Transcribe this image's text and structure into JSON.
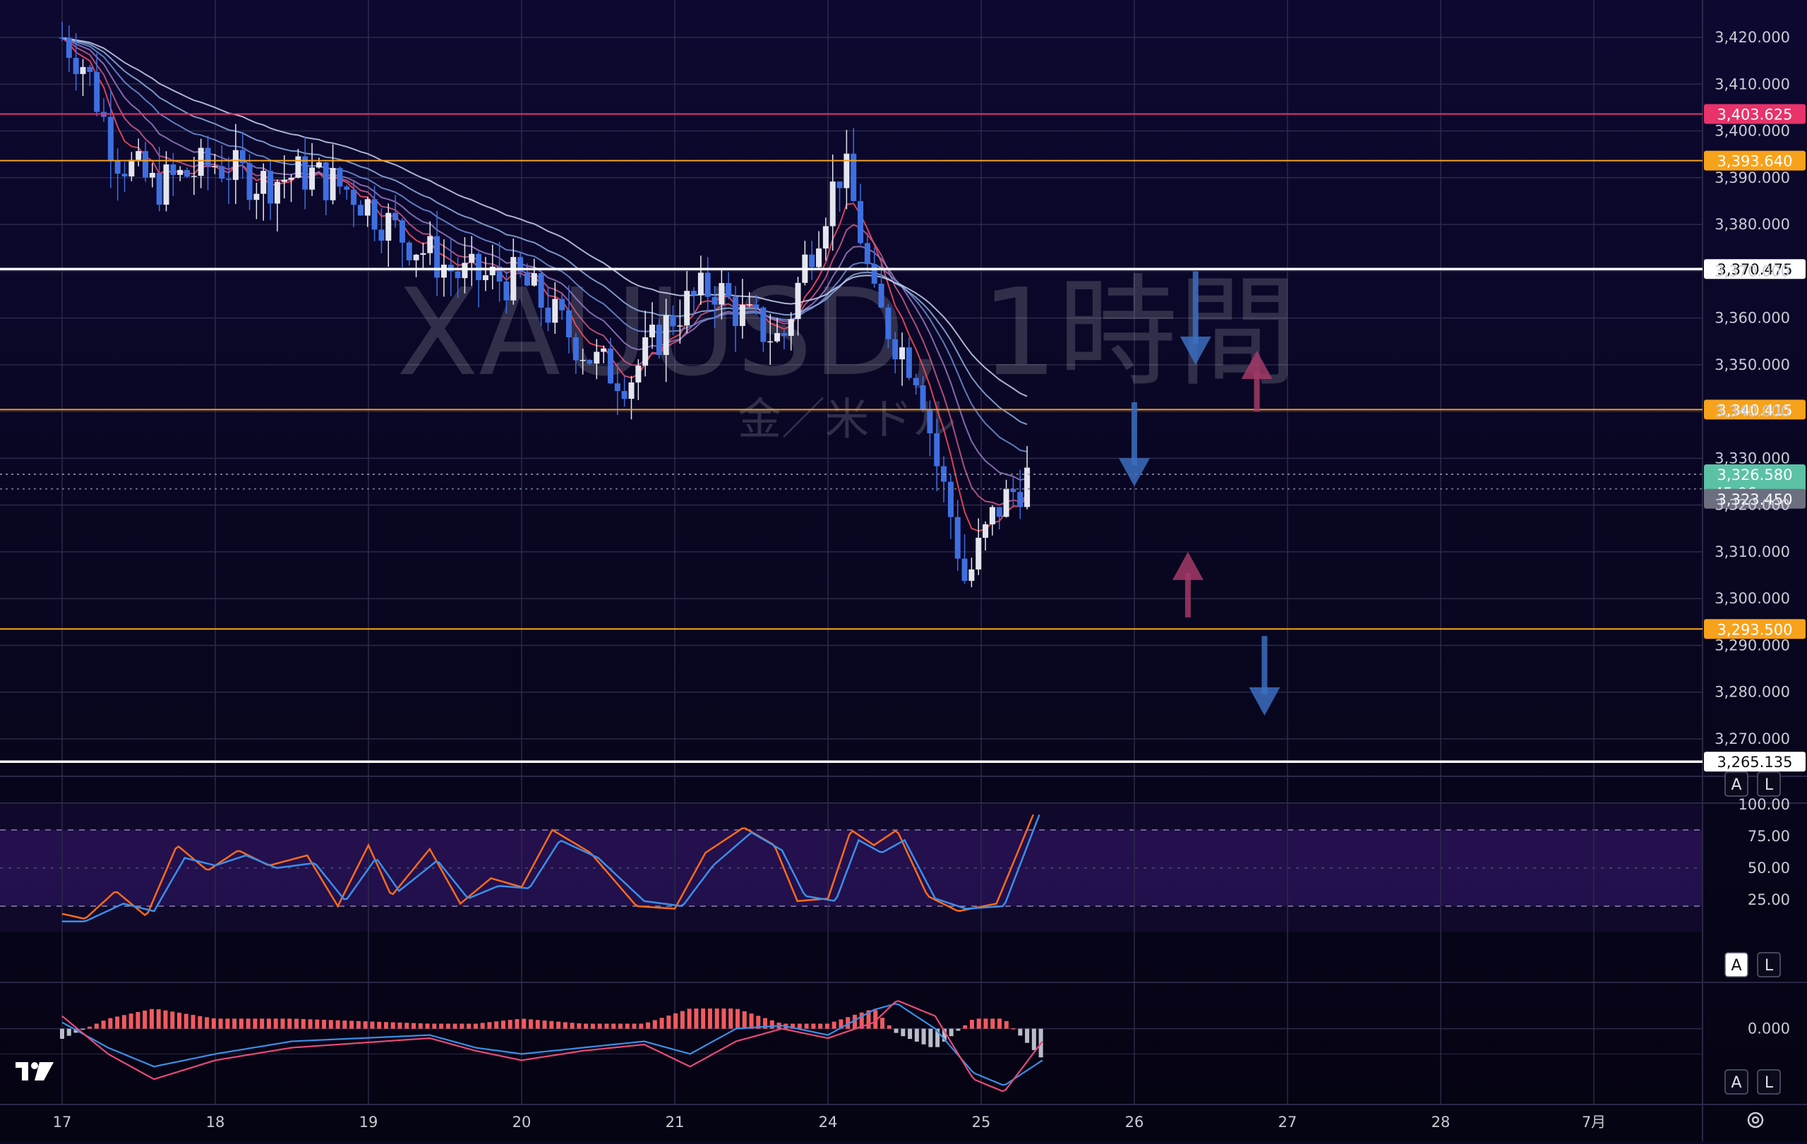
{
  "chart_data": [
    {
      "type": "candlestick",
      "watermark": {
        "symbol": "XAUUSD, 1時間",
        "description": "金／米ドル"
      },
      "x_axis": {
        "tick_labels": [
          "17",
          "18",
          "19",
          "20",
          "21",
          "24",
          "25",
          "26",
          "27",
          "28",
          "7月"
        ]
      },
      "y_axis": {
        "tick_labels": [
          "3,420.000",
          "3,410.000",
          "3,400.000",
          "3,390.000",
          "3,380.000",
          "3,370.000",
          "3,360.000",
          "3,350.000",
          "3,340.000",
          "3,330.000",
          "3,320.000",
          "3,310.000",
          "3,300.000",
          "3,290.000",
          "3,280.000",
          "3,270.000"
        ],
        "range": [
          3262,
          3428
        ]
      },
      "current_price": {
        "value": "3,326.580",
        "countdown": "45:06",
        "color": "#5bc2a6"
      },
      "bid_price": {
        "value": "3,323.450"
      },
      "horizontal_levels": [
        {
          "label": "3,403.625",
          "price": 3403.625,
          "color": "#e8336b"
        },
        {
          "label": "3,393.640",
          "price": 3393.64,
          "color": "#f7a21b"
        },
        {
          "label": "3,370.475",
          "price": 3370.475,
          "color": "#ffffff"
        },
        {
          "label": "3,340.415",
          "price": 3340.415,
          "color": "#f7a21b"
        },
        {
          "label": "3,293.500",
          "price": 3293.5,
          "color": "#f7a21b"
        },
        {
          "label": "3,265.135",
          "price": 3265.135,
          "color": "#ffffff"
        }
      ],
      "annotations": [
        {
          "kind": "arrow-down",
          "color": "#3b6fbf",
          "price_from": 3370,
          "price_to": 3350,
          "slot": 7.4
        },
        {
          "kind": "arrow-up",
          "color": "#a23a66",
          "price_from": 3340,
          "price_to": 3353,
          "slot": 7.8
        },
        {
          "kind": "arrow-down",
          "color": "#3b6fbf",
          "price_from": 3342,
          "price_to": 3324,
          "slot": 7.0
        },
        {
          "kind": "arrow-up",
          "color": "#a23a66",
          "price_from": 3296,
          "price_to": 3310,
          "slot": 7.35
        },
        {
          "kind": "arrow-down",
          "color": "#3b6fbf",
          "price_from": 3292,
          "price_to": 3275,
          "slot": 7.85
        }
      ],
      "series": [
        {
          "name": "close",
          "keypoints": [
            [
              0,
              3420
            ],
            [
              0.15,
              3414
            ],
            [
              0.35,
              3395
            ],
            [
              0.6,
              3388
            ],
            [
              1,
              3393
            ],
            [
              1.3,
              3389
            ],
            [
              1.6,
              3391
            ],
            [
              1.9,
              3387
            ],
            [
              2.2,
              3378
            ],
            [
              2.6,
              3369
            ],
            [
              3,
              3368
            ],
            [
              3.3,
              3357
            ],
            [
              3.5,
              3350
            ],
            [
              3.7,
              3347
            ],
            [
              4,
              3361
            ],
            [
              4.25,
              3367
            ],
            [
              4.45,
              3360
            ],
            [
              4.7,
              3355
            ],
            [
              4.85,
              3372
            ],
            [
              5,
              3385
            ],
            [
              5.1,
              3393
            ],
            [
              5.2,
              3380
            ],
            [
              5.3,
              3363
            ],
            [
              5.45,
              3355
            ],
            [
              5.6,
              3348
            ],
            [
              5.7,
              3330
            ],
            [
              5.8,
              3318
            ],
            [
              5.9,
              3303
            ],
            [
              5.98,
              3310
            ],
            [
              6.1,
              3319
            ],
            [
              6.3,
              3326
            ]
          ]
        }
      ],
      "ema_ribbon": {
        "colors": [
          "#ff4d5e",
          "#cc5a86",
          "#9a7bc4",
          "#6e8fd6",
          "#8fb0e0",
          "#c8d4ee"
        ]
      }
    },
    {
      "type": "line",
      "indicator": "stochastic",
      "y_axis": {
        "tick_labels": [
          "100.00",
          "75.00",
          "50.00",
          "25.00"
        ],
        "range": [
          0,
          100
        ]
      },
      "band": [
        20,
        80
      ],
      "series": [
        {
          "color": "#ff6b1a",
          "keypoints": [
            [
              0,
              14
            ],
            [
              0.15,
              10
            ],
            [
              0.35,
              32
            ],
            [
              0.55,
              12
            ],
            [
              0.75,
              68
            ],
            [
              0.95,
              48
            ],
            [
              1.15,
              64
            ],
            [
              1.35,
              52
            ],
            [
              1.6,
              60
            ],
            [
              1.8,
              20
            ],
            [
              2,
              68
            ],
            [
              2.15,
              28
            ],
            [
              2.4,
              65
            ],
            [
              2.6,
              22
            ],
            [
              2.8,
              42
            ],
            [
              3,
              35
            ],
            [
              3.2,
              80
            ],
            [
              3.45,
              62
            ],
            [
              3.75,
              20
            ],
            [
              4,
              18
            ],
            [
              4.2,
              62
            ],
            [
              4.45,
              82
            ],
            [
              4.65,
              68
            ],
            [
              4.8,
              24
            ],
            [
              5,
              26
            ],
            [
              5.15,
              80
            ],
            [
              5.3,
              68
            ],
            [
              5.45,
              80
            ],
            [
              5.65,
              28
            ],
            [
              5.85,
              16
            ],
            [
              6.1,
              22
            ],
            [
              6.35,
              95
            ]
          ]
        },
        {
          "color": "#3b8fe8",
          "keypoints": [
            [
              0,
              8
            ],
            [
              0.15,
              8
            ],
            [
              0.4,
              22
            ],
            [
              0.6,
              16
            ],
            [
              0.8,
              58
            ],
            [
              1,
              52
            ],
            [
              1.2,
              60
            ],
            [
              1.4,
              50
            ],
            [
              1.65,
              54
            ],
            [
              1.85,
              24
            ],
            [
              2.05,
              58
            ],
            [
              2.2,
              32
            ],
            [
              2.45,
              56
            ],
            [
              2.65,
              26
            ],
            [
              2.85,
              36
            ],
            [
              3.05,
              34
            ],
            [
              3.25,
              72
            ],
            [
              3.5,
              58
            ],
            [
              3.8,
              24
            ],
            [
              4.05,
              20
            ],
            [
              4.25,
              52
            ],
            [
              4.5,
              78
            ],
            [
              4.7,
              64
            ],
            [
              4.85,
              28
            ],
            [
              5.05,
              24
            ],
            [
              5.2,
              72
            ],
            [
              5.35,
              62
            ],
            [
              5.5,
              72
            ],
            [
              5.7,
              26
            ],
            [
              5.9,
              18
            ],
            [
              6.15,
              20
            ],
            [
              6.38,
              92
            ]
          ]
        }
      ]
    },
    {
      "type": "bar",
      "indicator": "macd",
      "y_axis": {
        "tick_labels": [
          "0.000"
        ],
        "range": [
          -12,
          7
        ]
      },
      "histogram": {
        "positive_color": "#f15a60",
        "negative_color": "#b9bcc9"
      },
      "series": [
        {
          "name": "macd",
          "color": "#3b8fe8",
          "keypoints": [
            [
              0,
              1
            ],
            [
              0.3,
              -3
            ],
            [
              0.6,
              -6
            ],
            [
              1,
              -4
            ],
            [
              1.5,
              -2
            ],
            [
              2.4,
              -1
            ],
            [
              2.7,
              -3
            ],
            [
              3,
              -4
            ],
            [
              3.4,
              -3
            ],
            [
              3.8,
              -2
            ],
            [
              4.1,
              -4
            ],
            [
              4.4,
              0
            ],
            [
              4.7,
              0.5
            ],
            [
              5,
              -1
            ],
            [
              5.3,
              3
            ],
            [
              5.45,
              4
            ],
            [
              5.7,
              0
            ],
            [
              5.95,
              -7
            ],
            [
              6.15,
              -9
            ],
            [
              6.4,
              -5
            ]
          ]
        },
        {
          "name": "signal",
          "color": "#e84a7a",
          "keypoints": [
            [
              0,
              2
            ],
            [
              0.3,
              -4
            ],
            [
              0.6,
              -8
            ],
            [
              1,
              -5
            ],
            [
              1.5,
              -3
            ],
            [
              2.4,
              -1.5
            ],
            [
              2.7,
              -3.5
            ],
            [
              3,
              -5
            ],
            [
              3.4,
              -3.5
            ],
            [
              3.8,
              -2.5
            ],
            [
              4.1,
              -6
            ],
            [
              4.4,
              -2
            ],
            [
              4.7,
              0
            ],
            [
              5,
              -1.5
            ],
            [
              5.3,
              1
            ],
            [
              5.45,
              4.5
            ],
            [
              5.7,
              2
            ],
            [
              5.95,
              -8
            ],
            [
              6.15,
              -10
            ],
            [
              6.4,
              -2
            ]
          ]
        }
      ]
    }
  ],
  "panes": {
    "stoch_buttons": [
      "A",
      "L"
    ],
    "macd_buttons": [
      "A",
      "L"
    ],
    "price_buttons": [
      "A",
      "L"
    ]
  },
  "brand": {
    "logo": "tradingview-logo"
  },
  "settings": {
    "icon": "gear-icon"
  }
}
